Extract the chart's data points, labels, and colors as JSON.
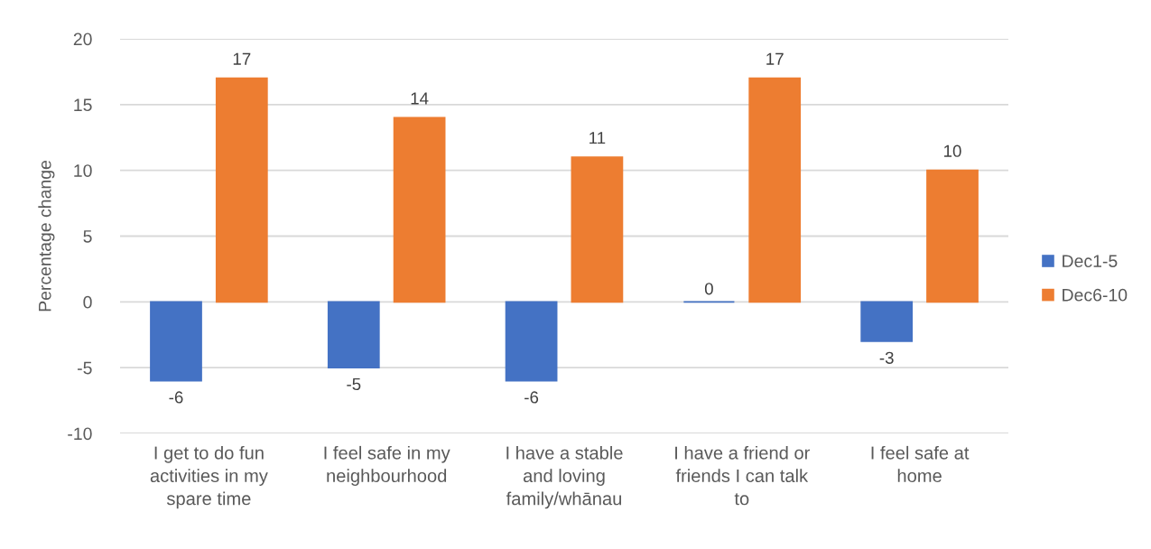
{
  "chart_data": {
    "type": "bar",
    "ylabel": "Percentage change",
    "categories": [
      "I get to do fun\nactivities in my\nspare time",
      "I feel safe in my\nneighbourhood",
      "I have a stable\nand loving\nfamily/whānau",
      "I have a friend or\nfriends I can talk\nto",
      "I feel safe at\nhome"
    ],
    "series": [
      {
        "name": "Dec1-5",
        "color": "#4472c4",
        "values": [
          -6,
          -5,
          -6,
          0,
          -3
        ]
      },
      {
        "name": "Dec6-10",
        "color": "#ed7d31",
        "values": [
          17,
          14,
          11,
          17,
          10
        ]
      }
    ],
    "ylim": [
      -10,
      20
    ],
    "yticks": [
      -10,
      -5,
      0,
      5,
      10,
      15,
      20
    ],
    "grid": "y",
    "legend": "right",
    "data_labels": true
  }
}
